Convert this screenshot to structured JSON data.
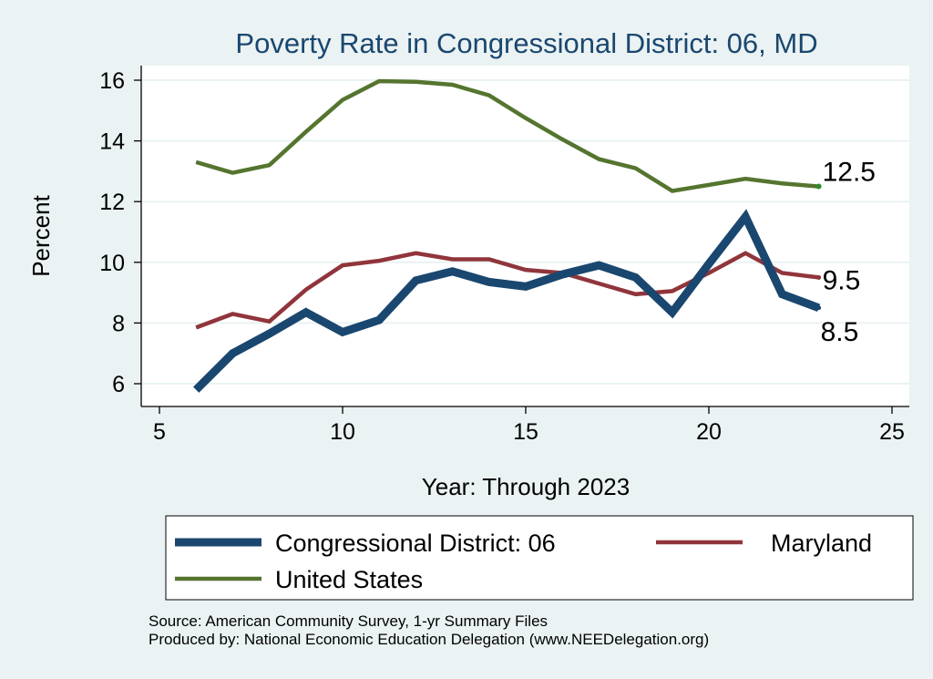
{
  "chart_data": {
    "type": "line",
    "title": "Poverty Rate in Congressional District:  06, MD",
    "xlabel": "Year: Through 2023",
    "ylabel": "Percent",
    "xlim": [
      5,
      25
    ],
    "ylim": [
      5.4,
      16.4
    ],
    "xticks": [
      5,
      10,
      15,
      20,
      25
    ],
    "yticks": [
      6,
      8,
      10,
      12,
      14,
      16
    ],
    "grid": true,
    "legend_position": "bottom",
    "series": [
      {
        "name": "Congressional District:  06",
        "color": "#1a476f",
        "x": [
          6,
          7,
          8,
          9,
          10,
          11,
          12,
          13,
          14,
          15,
          16,
          17,
          18,
          19,
          20,
          21,
          22,
          23
        ],
        "y": [
          5.8,
          7.0,
          7.65,
          8.35,
          7.7,
          8.1,
          9.4,
          9.7,
          9.35,
          9.2,
          9.6,
          9.9,
          9.5,
          8.35,
          9.95,
          11.5,
          8.95,
          8.5
        ],
        "end_label": "8.5"
      },
      {
        "name": "Maryland",
        "color": "#90353b",
        "x": [
          6,
          7,
          8,
          9,
          10,
          11,
          12,
          13,
          14,
          15,
          16,
          17,
          18,
          19,
          20,
          21,
          22,
          23
        ],
        "y": [
          7.85,
          8.3,
          8.05,
          9.1,
          9.9,
          10.05,
          10.3,
          10.1,
          10.1,
          9.75,
          9.65,
          9.3,
          8.95,
          9.05,
          9.65,
          10.3,
          9.65,
          9.5
        ],
        "end_label": "9.5"
      },
      {
        "name": "United States",
        "color": "#55752f",
        "x": [
          6,
          7,
          8,
          9,
          10,
          11,
          12,
          13,
          14,
          15,
          16,
          17,
          18,
          19,
          20,
          21,
          22,
          23
        ],
        "y": [
          13.3,
          12.95,
          13.2,
          14.3,
          15.35,
          15.97,
          15.95,
          15.85,
          15.5,
          14.75,
          14.05,
          13.4,
          13.1,
          12.35,
          12.55,
          12.75,
          12.6,
          12.5
        ],
        "end_label": "12.5"
      }
    ],
    "legend_order": [
      0,
      1,
      2
    ],
    "notes": [
      "Source: American Community Survey, 1-yr Summary Files",
      "Produced by: National Economic Education Delegation (www.NEEDelegation.org)"
    ]
  },
  "colors": {
    "background": "#eaf2f3",
    "plot_background": "#ffffff",
    "grid": "#eaf2f3",
    "title": "#1a476f",
    "text": "#000000"
  }
}
